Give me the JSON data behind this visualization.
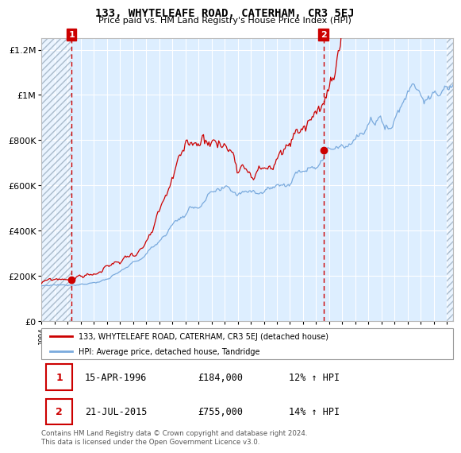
{
  "title": "133, WHYTELEAFE ROAD, CATERHAM, CR3 5EJ",
  "subtitle": "Price paid vs. HM Land Registry's House Price Index (HPI)",
  "legend_line1": "133, WHYTELEAFE ROAD, CATERHAM, CR3 5EJ (detached house)",
  "legend_line2": "HPI: Average price, detached house, Tandridge",
  "transaction1_date": "15-APR-1996",
  "transaction1_price": 184000,
  "transaction1_label": "12% ↑ HPI",
  "transaction1_year": 1996.29,
  "transaction2_date": "21-JUL-2015",
  "transaction2_price": 755000,
  "transaction2_label": "14% ↑ HPI",
  "transaction2_year": 2015.55,
  "hpi_color": "#7aaadd",
  "price_color": "#cc0000",
  "marker_color": "#cc0000",
  "background_color": "#ddeeff",
  "hatch_color": "#aabbcc",
  "grid_color": "#ffffff",
  "dashed_line_color": "#cc0000",
  "annotation_box_color": "#cc0000",
  "ylim": [
    0,
    1250000
  ],
  "xlim_start": 1994.0,
  "xlim_end": 2025.5,
  "hatch_end": 2025.5,
  "footer": "Contains HM Land Registry data © Crown copyright and database right 2024.\nThis data is licensed under the Open Government Licence v3.0."
}
